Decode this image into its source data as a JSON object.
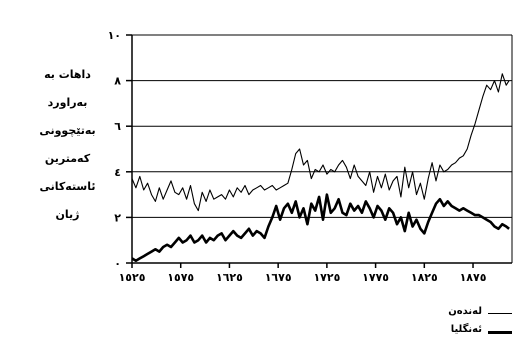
{
  "chart_data": {
    "type": "line",
    "y_axis_label_lines": [
      "داهات بە",
      "بەراورد",
      "بەتێچوونی",
      "کەمترین",
      "ئاستەکانی",
      "ژیان"
    ],
    "y_ticks": [
      "١٠",
      "٨",
      "٦",
      "٤",
      "٢",
      "٠"
    ],
    "y_tick_values": [
      10,
      8,
      6,
      4,
      2,
      0
    ],
    "x_ticks": [
      "١٥٢٥",
      "١٥٧٥",
      "١٦٢٥",
      "١٦٧٥",
      "١٧٢٥",
      "١٧٧٥",
      "١٨٢٥",
      "١٨٧٥"
    ],
    "x_tick_values": [
      1525,
      1575,
      1625,
      1675,
      1725,
      1775,
      1825,
      1875
    ],
    "xlim": [
      1525,
      1915
    ],
    "ylim": [
      0,
      10
    ],
    "grid": true,
    "legend_position": "bottom-right",
    "series": [
      {
        "name": "لەندەن",
        "style": "thin",
        "x": [
          1525,
          1529,
          1533,
          1537,
          1541,
          1545,
          1549,
          1553,
          1557,
          1561,
          1565,
          1569,
          1573,
          1577,
          1581,
          1585,
          1589,
          1593,
          1597,
          1601,
          1605,
          1609,
          1613,
          1617,
          1621,
          1625,
          1629,
          1633,
          1637,
          1641,
          1645,
          1649,
          1653,
          1657,
          1661,
          1665,
          1669,
          1673,
          1677,
          1681,
          1685,
          1689,
          1693,
          1697,
          1701,
          1705,
          1709,
          1713,
          1717,
          1721,
          1725,
          1729,
          1733,
          1737,
          1741,
          1745,
          1749,
          1753,
          1757,
          1761,
          1765,
          1769,
          1773,
          1777,
          1781,
          1785,
          1789,
          1793,
          1797,
          1801,
          1805,
          1809,
          1813,
          1817,
          1821,
          1825,
          1829,
          1833,
          1837,
          1841,
          1845,
          1849,
          1853,
          1857,
          1861,
          1865,
          1869,
          1873,
          1877,
          1881,
          1885,
          1889,
          1893,
          1897,
          1901,
          1905,
          1909,
          1912
        ],
        "values": [
          3.7,
          3.3,
          3.8,
          3.2,
          3.5,
          3.0,
          2.7,
          3.3,
          2.8,
          3.2,
          3.6,
          3.1,
          3.0,
          3.3,
          2.8,
          3.4,
          2.6,
          2.3,
          3.1,
          2.7,
          3.2,
          2.8,
          2.9,
          3.0,
          2.8,
          3.2,
          2.9,
          3.3,
          3.1,
          3.4,
          3.0,
          3.2,
          3.3,
          3.4,
          3.2,
          3.3,
          3.4,
          3.2,
          3.3,
          3.4,
          3.5,
          4.1,
          4.8,
          5.0,
          4.3,
          4.5,
          3.7,
          4.1,
          4.0,
          4.3,
          3.9,
          4.1,
          4.0,
          4.3,
          4.5,
          4.2,
          3.7,
          4.3,
          3.8,
          3.6,
          3.4,
          4.0,
          3.1,
          3.8,
          3.3,
          3.9,
          3.2,
          3.6,
          3.8,
          2.9,
          4.2,
          3.3,
          4.0,
          3.0,
          3.5,
          2.8,
          3.7,
          4.4,
          3.6,
          4.3,
          4.0,
          4.1,
          4.3,
          4.4,
          4.6,
          4.7,
          5.0,
          5.6,
          6.1,
          6.7,
          7.3,
          7.8,
          7.6,
          8.0,
          7.5,
          8.3,
          7.8,
          8.0
        ]
      },
      {
        "name": "ئەنگلیا",
        "style": "thick",
        "x": [
          1525,
          1529,
          1533,
          1537,
          1541,
          1545,
          1549,
          1553,
          1557,
          1561,
          1565,
          1569,
          1573,
          1577,
          1581,
          1585,
          1589,
          1593,
          1597,
          1601,
          1605,
          1609,
          1613,
          1617,
          1621,
          1625,
          1629,
          1633,
          1637,
          1641,
          1645,
          1649,
          1653,
          1657,
          1661,
          1665,
          1669,
          1673,
          1677,
          1681,
          1685,
          1689,
          1693,
          1697,
          1701,
          1705,
          1709,
          1713,
          1717,
          1721,
          1725,
          1729,
          1733,
          1737,
          1741,
          1745,
          1749,
          1753,
          1757,
          1761,
          1765,
          1769,
          1773,
          1777,
          1781,
          1785,
          1789,
          1793,
          1797,
          1801,
          1805,
          1809,
          1813,
          1817,
          1821,
          1825,
          1829,
          1833,
          1837,
          1841,
          1845,
          1849,
          1853,
          1857,
          1861,
          1865,
          1869,
          1873,
          1877,
          1881,
          1885,
          1889,
          1893,
          1897,
          1901,
          1905,
          1909,
          1912
        ],
        "values": [
          0.2,
          0.1,
          0.2,
          0.3,
          0.4,
          0.5,
          0.6,
          0.5,
          0.7,
          0.8,
          0.7,
          0.9,
          1.1,
          0.9,
          1.0,
          1.2,
          0.9,
          1.0,
          1.2,
          0.9,
          1.1,
          1.0,
          1.2,
          1.3,
          1.0,
          1.2,
          1.4,
          1.2,
          1.1,
          1.3,
          1.5,
          1.2,
          1.4,
          1.3,
          1.1,
          1.6,
          2.0,
          2.5,
          1.9,
          2.4,
          2.6,
          2.2,
          2.7,
          2.0,
          2.4,
          1.7,
          2.6,
          2.3,
          2.9,
          1.9,
          3.0,
          2.2,
          2.4,
          2.8,
          2.2,
          2.1,
          2.6,
          2.3,
          2.5,
          2.2,
          2.7,
          2.4,
          2.0,
          2.5,
          2.3,
          1.9,
          2.4,
          2.2,
          1.7,
          2.0,
          1.4,
          2.2,
          1.6,
          1.9,
          1.5,
          1.3,
          1.8,
          2.2,
          2.6,
          2.8,
          2.5,
          2.7,
          2.5,
          2.4,
          2.3,
          2.4,
          2.3,
          2.2,
          2.1,
          2.1,
          2.0,
          1.9,
          1.8,
          1.6,
          1.5,
          1.7,
          1.6,
          1.5
        ]
      }
    ]
  }
}
